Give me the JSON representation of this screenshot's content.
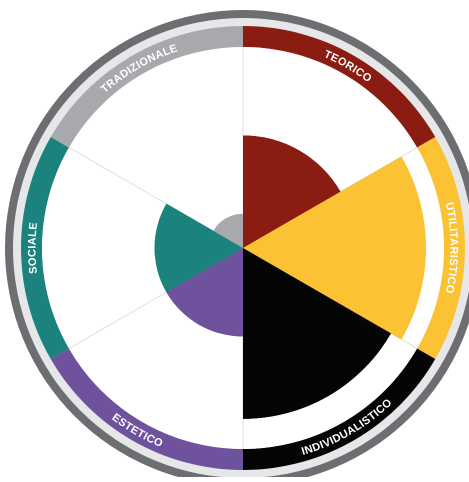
{
  "chart_data": {
    "type": "polar-area",
    "max_value": 10,
    "colors": {
      "outer_ring": "#6d6e71",
      "ring_gap": "#e6e7e8",
      "center": "#a7a9ac",
      "divider": "#d9d9d9"
    },
    "categories": [
      {
        "label": "TEORICO",
        "value": 5.6,
        "color": "#8b1c12"
      },
      {
        "label": "UTILITARISTICO",
        "value": 9.1,
        "color": "#fbc234"
      },
      {
        "label": "INDIVIDUALISTICO",
        "value": 8.5,
        "color": "#050505"
      },
      {
        "label": "ESTETICO",
        "value": 4.4,
        "color": "#6f529e"
      },
      {
        "label": "SOCIALE",
        "value": 4.4,
        "color": "#1c827d"
      },
      {
        "label": "TRADIZIONALE",
        "value": 1.7,
        "color": "#a7a9ac"
      }
    ]
  }
}
